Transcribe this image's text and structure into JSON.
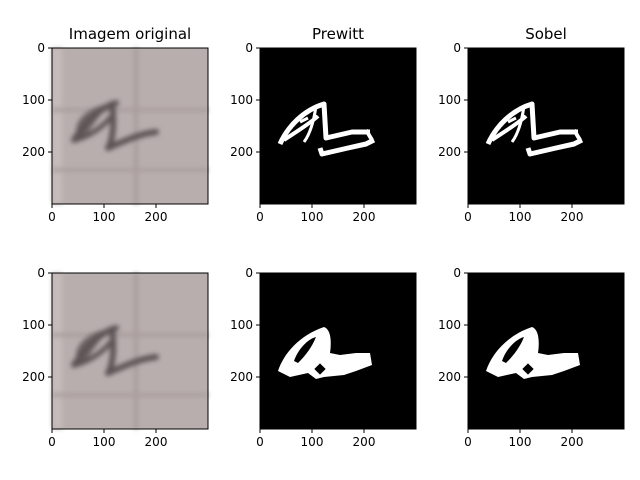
{
  "panels": [
    {
      "title": "Imagem original",
      "type": "photo"
    },
    {
      "title": "Prewitt",
      "type": "edges"
    },
    {
      "title": "Sobel",
      "type": "edges"
    },
    {
      "title": "",
      "type": "photo"
    },
    {
      "title": "",
      "type": "edges-filled"
    },
    {
      "title": "",
      "type": "edges-filled"
    }
  ],
  "axis_ticks": {
    "x": [
      "0",
      "100",
      "200"
    ],
    "y": [
      "0",
      "100",
      "200"
    ],
    "x_values": [
      0,
      100,
      200
    ],
    "y_values": [
      0,
      100,
      200
    ],
    "image_extent": [
      0,
      300
    ]
  },
  "colors": {
    "paper": "#b9aeae",
    "grid_line": "#a69a9a",
    "ink": "#5b5354",
    "edge_background": "#000000",
    "edge_foreground": "#ffffff"
  }
}
